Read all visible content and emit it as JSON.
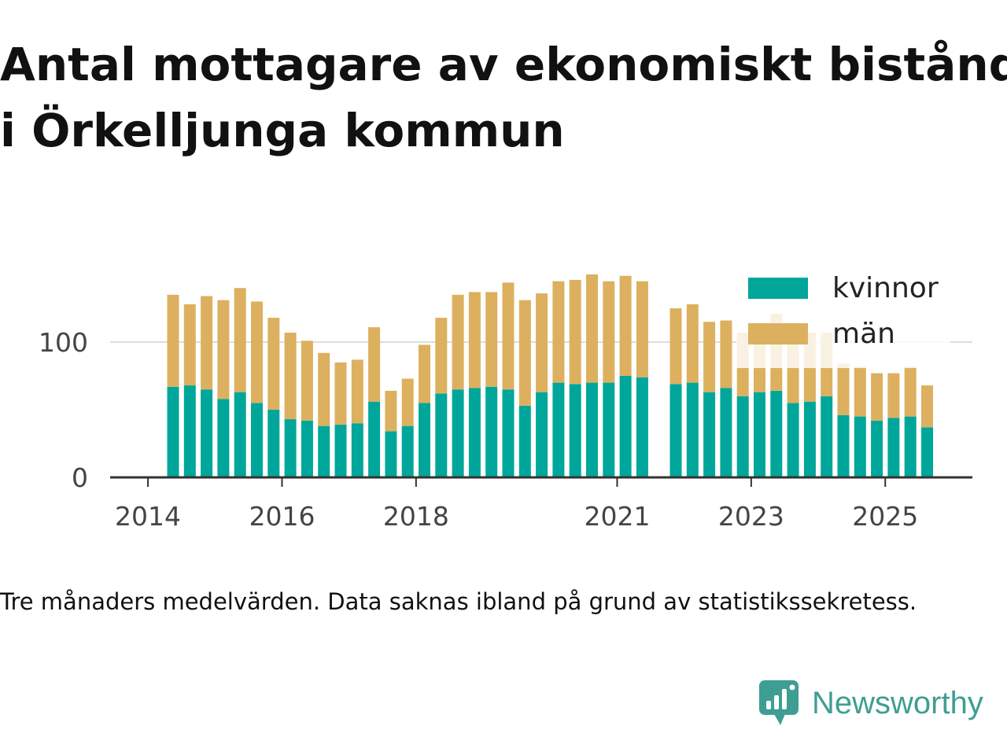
{
  "title_lines": [
    "Antal mottagare av ekonomiskt bistånd",
    "i Örkelljunga kommun"
  ],
  "caption": "Tre månaders medelvärden. Data saknas ibland på grund av statistikssekretess.",
  "brand": {
    "name": "Newsworthy",
    "icon": "newsworthy-logo-icon",
    "color": "#3e9e93"
  },
  "chart_data": {
    "type": "bar",
    "stacked": true,
    "x_ticks": [
      "2014",
      "2016",
      "2018",
      "2021",
      "2023",
      "2025"
    ],
    "y_ticks": [
      0,
      100
    ],
    "ylim": [
      0,
      160
    ],
    "grid": true,
    "legend_position": "top-right",
    "categories": [
      "2014-Q2",
      "2014-Q3",
      "2014-Q4",
      "2015-Q1",
      "2015-Q2",
      "2015-Q3",
      "2015-Q4",
      "2016-Q1",
      "2016-Q2",
      "2016-Q3",
      "2016-Q4",
      "2017-Q1",
      "2017-Q2",
      "2017-Q3",
      "2017-Q4",
      "2018-Q1",
      "2018-Q2",
      "2018-Q3",
      "2018-Q4",
      "2019-Q1",
      "2019-Q2",
      "2019-Q3",
      "2019-Q4",
      "2020-Q1",
      "2020-Q2",
      "2020-Q3",
      "2020-Q4",
      "2021-Q1",
      "2021-Q2",
      "2021-Q3",
      "2021-Q4",
      "2022-Q1",
      "2022-Q2",
      "2022-Q3",
      "2022-Q4",
      "2023-Q1",
      "2023-Q2",
      "2023-Q3",
      "2023-Q4",
      "2024-Q1",
      "2024-Q2",
      "2024-Q3",
      "2024-Q4",
      "2025-Q1",
      "2025-Q2",
      "2025-Q3"
    ],
    "series": [
      {
        "name": "kvinnor",
        "color": "#00a69a",
        "values": [
          67,
          68,
          65,
          58,
          63,
          55,
          50,
          43,
          42,
          38,
          39,
          40,
          56,
          34,
          38,
          55,
          62,
          65,
          66,
          67,
          65,
          53,
          63,
          70,
          69,
          70,
          70,
          75,
          74,
          null,
          69,
          70,
          63,
          66,
          60,
          63,
          64,
          55,
          56,
          60,
          46,
          45,
          42,
          44,
          45,
          37
        ]
      },
      {
        "name": "män",
        "color": "#ddb05f",
        "values": [
          68,
          60,
          69,
          73,
          77,
          75,
          68,
          64,
          59,
          54,
          46,
          47,
          55,
          30,
          35,
          43,
          56,
          70,
          71,
          70,
          79,
          78,
          73,
          75,
          77,
          80,
          75,
          74,
          71,
          null,
          56,
          58,
          52,
          50,
          47,
          48,
          57,
          52,
          51,
          47,
          38,
          37,
          35,
          33,
          37,
          31
        ]
      }
    ]
  }
}
